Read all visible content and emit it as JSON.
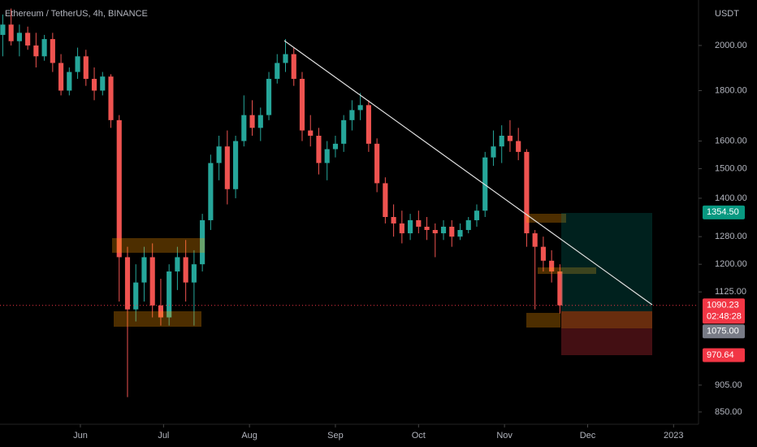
{
  "chart_data": {
    "type": "candlestick",
    "title": "Ethereum / TetherUS, 4h, BINANCE",
    "currency": "USDT",
    "log_scale": true,
    "up_color": "#26a69a",
    "down_color": "#ef5350",
    "xlim": [
      123,
      375
    ],
    "xticks": [
      {
        "value": 152,
        "label": "Jun"
      },
      {
        "value": 182,
        "label": "Jul"
      },
      {
        "value": 213,
        "label": "Aug"
      },
      {
        "value": 244,
        "label": "Sep"
      },
      {
        "value": 274,
        "label": "Oct"
      },
      {
        "value": 305,
        "label": "Nov"
      },
      {
        "value": 335,
        "label": "Dec"
      },
      {
        "value": 366,
        "label": "2023"
      }
    ],
    "ylim": [
      826,
      2224
    ],
    "yticks": [
      {
        "value": 2000,
        "label": "2000.00"
      },
      {
        "value": 1800,
        "label": "1800.00"
      },
      {
        "value": 1600,
        "label": "1600.00"
      },
      {
        "value": 1500,
        "label": "1500.00"
      },
      {
        "value": 1400,
        "label": "1400.00"
      },
      {
        "value": 1280,
        "label": "1280.00"
      },
      {
        "value": 1200,
        "label": "1200.00"
      },
      {
        "value": 1125,
        "label": "1125.00"
      },
      {
        "value": 905,
        "label": "905.00"
      },
      {
        "value": 850,
        "label": "850.00"
      }
    ],
    "x": [
      124,
      127,
      130,
      133,
      136,
      139,
      142,
      145,
      148,
      151,
      154,
      157,
      160,
      163,
      166,
      169,
      172,
      175,
      178,
      181,
      184,
      187,
      190,
      193,
      196,
      199,
      202,
      205,
      208,
      211,
      214,
      217,
      220,
      223,
      226,
      229,
      232,
      235,
      238,
      241,
      244,
      247,
      250,
      253,
      256,
      259,
      262,
      265,
      268,
      271,
      274,
      277,
      280,
      283,
      286,
      289,
      292,
      295,
      298,
      301,
      304,
      307,
      310,
      313,
      316,
      319,
      322,
      325
    ],
    "open": [
      2050,
      2100,
      2020,
      2060,
      2000,
      1950,
      2030,
      1920,
      1800,
      1880,
      1950,
      1850,
      1800,
      1860,
      1680,
      1220,
      1080,
      1150,
      1220,
      1090,
      1060,
      1180,
      1220,
      1150,
      1200,
      1330,
      1520,
      1580,
      1430,
      1600,
      1700,
      1650,
      1700,
      1850,
      1920,
      1960,
      1850,
      1640,
      1620,
      1520,
      1570,
      1590,
      1680,
      1720,
      1740,
      1590,
      1450,
      1340,
      1320,
      1290,
      1330,
      1310,
      1300,
      1290,
      1310,
      1280,
      1300,
      1330,
      1360,
      1540,
      1580,
      1620,
      1600,
      1560,
      1290,
      1250,
      1210,
      1180
    ],
    "high": [
      2150,
      2180,
      2100,
      2090,
      2060,
      2050,
      2060,
      1960,
      1900,
      1990,
      1980,
      1900,
      1880,
      1870,
      1700,
      1250,
      1200,
      1250,
      1260,
      1160,
      1200,
      1250,
      1270,
      1240,
      1350,
      1550,
      1620,
      1640,
      1620,
      1780,
      1760,
      1730,
      1880,
      1960,
      2030,
      1990,
      1880,
      1700,
      1650,
      1600,
      1620,
      1700,
      1760,
      1790,
      1760,
      1610,
      1470,
      1380,
      1360,
      1350,
      1360,
      1340,
      1320,
      1330,
      1330,
      1320,
      1340,
      1380,
      1560,
      1640,
      1660,
      1680,
      1650,
      1570,
      1300,
      1280,
      1240,
      1200
    ],
    "low": [
      1950,
      2000,
      1950,
      1980,
      1900,
      1930,
      1880,
      1780,
      1780,
      1850,
      1820,
      1760,
      1780,
      1650,
      1100,
      880,
      1050,
      1100,
      1060,
      1040,
      1040,
      1130,
      1100,
      1040,
      1180,
      1300,
      1460,
      1380,
      1400,
      1580,
      1620,
      1600,
      1680,
      1830,
      1880,
      1820,
      1600,
      1580,
      1480,
      1460,
      1540,
      1560,
      1640,
      1680,
      1560,
      1420,
      1320,
      1280,
      1260,
      1270,
      1290,
      1270,
      1220,
      1270,
      1250,
      1270,
      1290,
      1310,
      1340,
      1510,
      1520,
      1560,
      1530,
      1250,
      1080,
      1180,
      1150,
      1070
    ],
    "close": [
      2100,
      2020,
      2060,
      2000,
      1950,
      2030,
      1920,
      1800,
      1880,
      1950,
      1850,
      1800,
      1860,
      1680,
      1220,
      1080,
      1150,
      1220,
      1090,
      1060,
      1180,
      1220,
      1150,
      1200,
      1330,
      1520,
      1580,
      1430,
      1600,
      1700,
      1650,
      1700,
      1850,
      1920,
      1960,
      1850,
      1640,
      1620,
      1520,
      1570,
      1590,
      1680,
      1720,
      1740,
      1590,
      1450,
      1340,
      1320,
      1290,
      1330,
      1310,
      1300,
      1290,
      1310,
      1280,
      1300,
      1330,
      1360,
      1540,
      1580,
      1620,
      1600,
      1560,
      1290,
      1250,
      1210,
      1180,
      1090.23
    ],
    "price_labels": [
      {
        "value": 1354.5,
        "label": "1354.50",
        "color": "#089981"
      },
      {
        "value": 1090.23,
        "label": "1090.23",
        "color": "#f23645",
        "countdown": "02:48:28"
      },
      {
        "value": 1075,
        "label": "1075.00",
        "color": "#787b86"
      },
      {
        "value": 970.64,
        "label": "970.64",
        "color": "#f23645"
      }
    ]
  }
}
